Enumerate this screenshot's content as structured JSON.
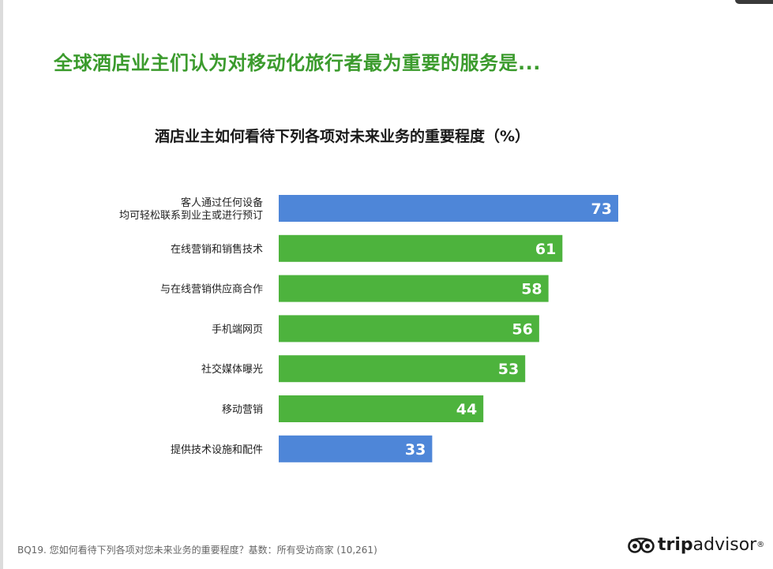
{
  "headline": "全球酒店业主们认为对移动化旅行者最为重要的服务是...",
  "chart_data": {
    "type": "bar",
    "orientation": "horizontal",
    "title": "酒店业主如何看待下列各项对未来业务的重要程度（%）",
    "categories": [
      "客人通过任何设备\n均可轻松联系到业主或进行预订",
      "在线营销和销售技术",
      "与在线营销供应商合作",
      "手机端网页",
      "社交媒体曝光",
      "移动营销",
      "提供技术设施和配件"
    ],
    "values": [
      73,
      61,
      58,
      56,
      53,
      44,
      33
    ],
    "bar_colors": [
      "#4e86d8",
      "#4db33d",
      "#4db33d",
      "#4db33d",
      "#4db33d",
      "#4db33d",
      "#4e86d8"
    ],
    "xlim": [
      0,
      73
    ],
    "xlabel": "",
    "ylabel": "",
    "grid": false
  },
  "footnote": "BQ19.  您如何看待下列各项对您未来业务的重要程度？基数：所有受访商家 (10,261)",
  "logo": {
    "trip": "trip",
    "advisor": "advisor",
    "mark": "®"
  },
  "colors": {
    "headline": "#3b9b2d",
    "blue_bar": "#4e86d8",
    "green_bar": "#4db33d"
  }
}
